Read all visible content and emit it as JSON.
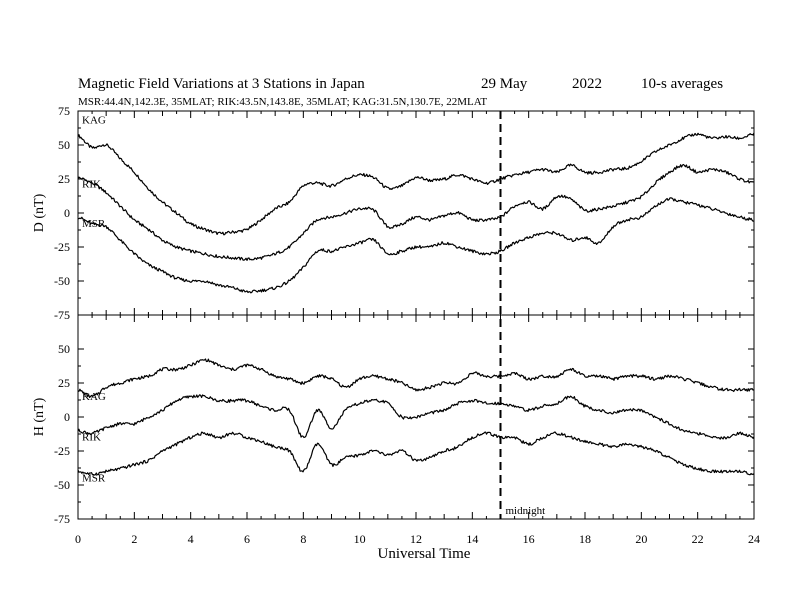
{
  "title": {
    "main": "Magnetic Field Variations at 3 Stations in Japan",
    "date": "29 May",
    "year": "2022",
    "avg": "10-s averages",
    "subtitle": "MSR:44.4N,142.3E, 35MLAT;  RIK:43.5N,143.8E, 35MLAT;  KAG:31.5N,130.7E, 22MLAT"
  },
  "xaxis": {
    "label": "Universal Time",
    "range": [
      0,
      24
    ],
    "ticks": [
      "0",
      "2",
      "4",
      "6",
      "8",
      "10",
      "12",
      "14",
      "16",
      "18",
      "20",
      "22",
      "24"
    ]
  },
  "midnight": {
    "x": 15,
    "label": "midnight"
  },
  "chart_data": [
    {
      "type": "line",
      "panel": "D",
      "ylabel": "D (nT)",
      "ylim": [
        -75,
        75
      ],
      "yticks": [
        "75",
        "50",
        "25",
        "0",
        "-25",
        "-50",
        "-75"
      ],
      "x": [
        0,
        0.5,
        1,
        1.5,
        2,
        2.5,
        3,
        3.5,
        4,
        4.5,
        5,
        5.5,
        6,
        6.5,
        7,
        7.5,
        8,
        8.5,
        9,
        9.5,
        10,
        10.5,
        11,
        11.5,
        12,
        12.5,
        13,
        13.5,
        14,
        14.5,
        15,
        15.5,
        16,
        16.5,
        17,
        17.5,
        18,
        18.5,
        19,
        19.5,
        20,
        20.5,
        21,
        21.5,
        22,
        22.5,
        23,
        23.5,
        24
      ],
      "series": [
        {
          "name": "KAG",
          "values": [
            57,
            48,
            50,
            40,
            30,
            18,
            8,
            0,
            -8,
            -12,
            -15,
            -14,
            -12,
            -5,
            3,
            8,
            20,
            22,
            20,
            25,
            28,
            26,
            18,
            20,
            26,
            24,
            25,
            28,
            25,
            22,
            25,
            28,
            30,
            32,
            30,
            35,
            30,
            30,
            32,
            33,
            38,
            45,
            50,
            55,
            58,
            55,
            56,
            55,
            58
          ]
        },
        {
          "name": "RIK",
          "values": [
            26,
            22,
            15,
            5,
            -5,
            -12,
            -20,
            -25,
            -28,
            -30,
            -32,
            -33,
            -34,
            -33,
            -30,
            -25,
            -15,
            -5,
            -3,
            0,
            3,
            2,
            -10,
            -8,
            -3,
            -5,
            -2,
            0,
            -5,
            -5,
            -3,
            5,
            8,
            3,
            12,
            10,
            2,
            3,
            5,
            8,
            12,
            22,
            30,
            35,
            30,
            32,
            30,
            25,
            22
          ]
        },
        {
          "name": "MSR",
          "values": [
            -3,
            -8,
            -10,
            -20,
            -30,
            -38,
            -43,
            -48,
            -50,
            -50,
            -53,
            -55,
            -58,
            -57,
            -55,
            -50,
            -40,
            -28,
            -28,
            -25,
            -22,
            -20,
            -30,
            -28,
            -25,
            -25,
            -22,
            -25,
            -28,
            -30,
            -28,
            -22,
            -18,
            -15,
            -15,
            -20,
            -18,
            -22,
            -10,
            -5,
            -3,
            5,
            10,
            8,
            6,
            3,
            0,
            -3,
            -5
          ]
        }
      ]
    },
    {
      "type": "line",
      "panel": "H",
      "ylabel": "H (nT)",
      "ylim": [
        -75,
        75
      ],
      "yticks": [
        "50",
        "25",
        "0",
        "-25",
        "-50",
        "-75"
      ],
      "x": [
        0,
        0.5,
        1,
        1.5,
        2,
        2.5,
        3,
        3.5,
        4,
        4.5,
        5,
        5.5,
        6,
        6.5,
        7,
        7.5,
        8,
        8.5,
        9,
        9.5,
        10,
        10.5,
        11,
        11.5,
        12,
        12.5,
        13,
        13.5,
        14,
        14.5,
        15,
        15.5,
        16,
        16.5,
        17,
        17.5,
        18,
        18.5,
        19,
        19.5,
        20,
        20.5,
        21,
        21.5,
        22,
        22.5,
        23,
        23.5,
        24
      ],
      "series": [
        {
          "name": "KAG",
          "values": [
            20,
            15,
            22,
            25,
            28,
            30,
            35,
            35,
            38,
            42,
            38,
            35,
            38,
            35,
            30,
            28,
            25,
            30,
            28,
            22,
            28,
            30,
            28,
            25,
            20,
            22,
            25,
            25,
            32,
            30,
            30,
            32,
            28,
            30,
            30,
            35,
            30,
            30,
            28,
            30,
            30,
            28,
            30,
            28,
            25,
            22,
            20,
            20,
            20
          ]
        },
        {
          "name": "RIK",
          "values": [
            -10,
            -12,
            -8,
            -5,
            -5,
            0,
            5,
            12,
            15,
            15,
            12,
            12,
            12,
            8,
            5,
            5,
            -15,
            5,
            -8,
            5,
            10,
            12,
            10,
            0,
            0,
            3,
            5,
            10,
            12,
            10,
            10,
            8,
            5,
            8,
            10,
            15,
            8,
            5,
            3,
            5,
            5,
            0,
            -5,
            -10,
            -12,
            -15,
            -15,
            -12,
            -15
          ]
        },
        {
          "name": "MSR",
          "values": [
            -40,
            -42,
            -40,
            -38,
            -35,
            -32,
            -25,
            -20,
            -15,
            -12,
            -15,
            -12,
            -15,
            -18,
            -22,
            -25,
            -40,
            -20,
            -35,
            -30,
            -28,
            -25,
            -28,
            -25,
            -32,
            -30,
            -25,
            -22,
            -15,
            -12,
            -15,
            -15,
            -20,
            -15,
            -12,
            -15,
            -18,
            -20,
            -22,
            -20,
            -22,
            -25,
            -30,
            -35,
            -38,
            -40,
            -40,
            -40,
            -42
          ]
        }
      ]
    }
  ]
}
